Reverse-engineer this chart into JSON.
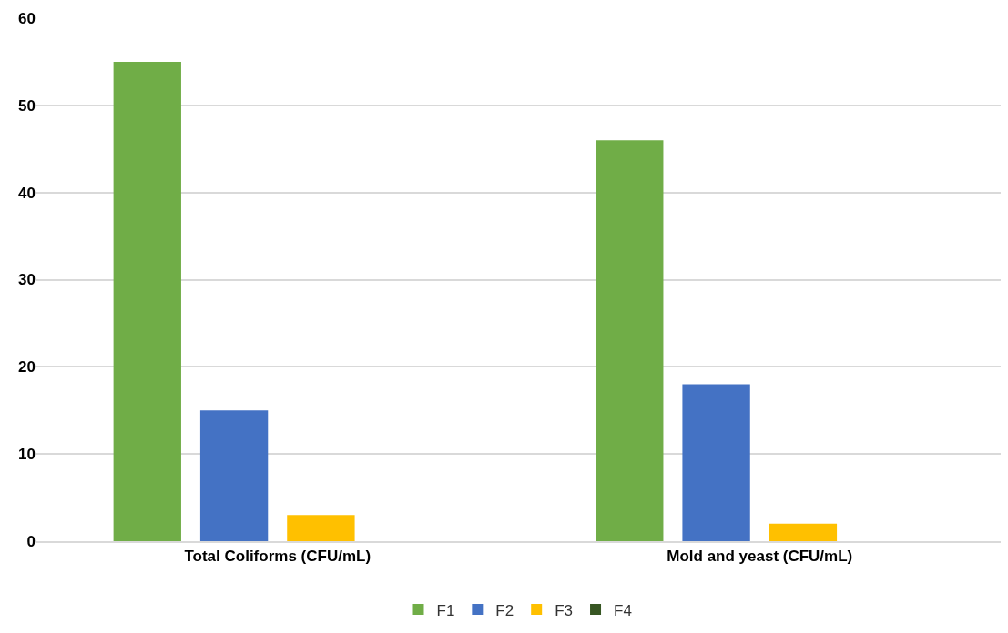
{
  "chart_data": {
    "type": "bar",
    "categories": [
      "Total Coliforms (CFU/mL)",
      "Mold and yeast (CFU/mL)"
    ],
    "series": [
      {
        "name": "F1",
        "color": "#70ad47",
        "values": [
          55,
          46
        ]
      },
      {
        "name": "F2",
        "color": "#4472c4",
        "values": [
          15,
          18
        ]
      },
      {
        "name": "F3",
        "color": "#ffc000",
        "values": [
          3,
          2
        ]
      },
      {
        "name": "F4",
        "color": "#375623",
        "values": [
          0,
          0
        ]
      }
    ],
    "ylim": [
      0,
      60
    ],
    "yticks": [
      0,
      10,
      20,
      30,
      40,
      50,
      60
    ],
    "grid": "y",
    "legend": "bottom"
  }
}
